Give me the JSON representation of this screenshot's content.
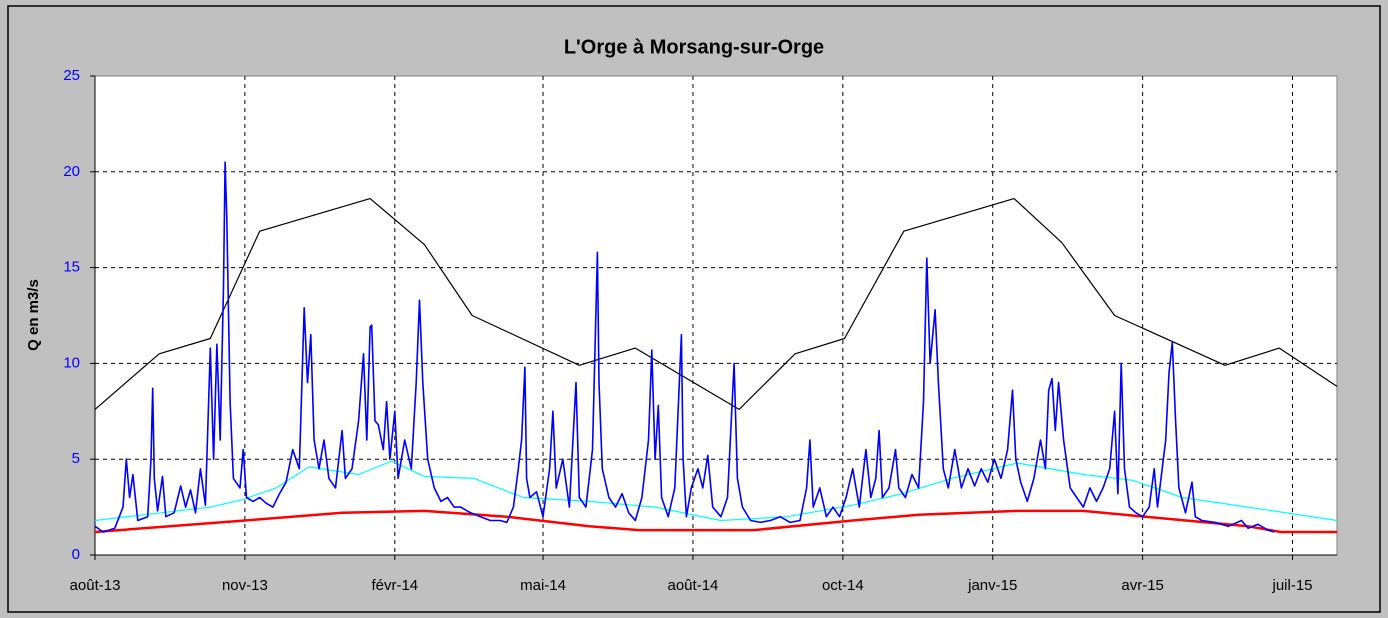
{
  "chart_data": {
    "type": "line",
    "title": "L'Orge à Morsang-sur-Orge",
    "ylabel": "Q en m3/s",
    "ylim": [
      0,
      25
    ],
    "yticks": [
      0,
      5,
      10,
      15,
      20,
      25
    ],
    "xlim": [
      0,
      754
    ],
    "xticks": [
      {
        "value": 0,
        "label": "août-13"
      },
      {
        "value": 91,
        "label": "nov-13"
      },
      {
        "value": 182,
        "label": "févr-14"
      },
      {
        "value": 272,
        "label": "mai-14"
      },
      {
        "value": 363,
        "label": "août-14"
      },
      {
        "value": 454,
        "label": "oct-14"
      },
      {
        "value": 545,
        "label": "janv-15"
      },
      {
        "value": 636,
        "label": "avr-15"
      },
      {
        "value": 727,
        "label": "juil-15"
      }
    ],
    "grid": true,
    "series": [
      {
        "color": "#000000",
        "x": [
          0,
          39,
          70,
          100,
          167,
          200,
          229,
          294,
          328,
          391,
          425,
          455,
          491,
          558,
          587,
          619,
          686,
          719,
          754
        ],
        "values": [
          7.6,
          10.5,
          11.3,
          16.9,
          18.6,
          16.2,
          12.5,
          9.9,
          10.8,
          7.6,
          10.5,
          11.3,
          16.9,
          18.6,
          16.3,
          12.5,
          9.9,
          10.8,
          8.8
        ]
      },
      {
        "color": "#00ffff",
        "x": [
          0,
          40,
          70,
          90,
          110,
          130,
          160,
          180,
          200,
          230,
          260,
          300,
          340,
          380,
          420,
          460,
          490,
          520,
          560,
          600,
          630,
          660,
          700,
          754
        ],
        "values": [
          1.8,
          2.2,
          2.5,
          2.9,
          3.5,
          4.6,
          4.2,
          4.9,
          4.1,
          4.0,
          3.0,
          2.8,
          2.5,
          1.8,
          2.0,
          2.6,
          3.2,
          4.0,
          4.8,
          4.2,
          3.9,
          3.0,
          2.5,
          1.8
        ]
      },
      {
        "color": "#ff0000",
        "x": [
          0,
          91,
          150,
          200,
          250,
          300,
          330,
          400,
          460,
          500,
          560,
          600,
          650,
          700,
          720,
          754
        ],
        "values": [
          1.2,
          1.8,
          2.2,
          2.3,
          2.0,
          1.5,
          1.3,
          1.3,
          1.8,
          2.1,
          2.3,
          2.3,
          1.9,
          1.5,
          1.2,
          1.2
        ]
      },
      {
        "color": "#0000ff",
        "x": [
          0,
          5,
          12,
          17,
          19,
          21,
          23,
          26,
          32,
          34,
          35,
          36,
          38,
          41,
          43,
          48,
          52,
          55,
          58,
          61,
          64,
          67,
          70,
          72,
          74,
          76,
          78,
          79,
          80,
          82,
          84,
          88,
          90,
          92,
          96,
          100,
          104,
          108,
          112,
          116,
          120,
          124,
          127,
          129,
          131,
          133,
          136,
          139,
          142,
          146,
          150,
          152,
          156,
          160,
          163,
          165,
          167,
          168,
          170,
          172,
          175,
          177,
          179,
          182,
          184,
          188,
          192,
          195,
          197,
          199,
          202,
          206,
          210,
          214,
          218,
          222,
          228,
          234,
          240,
          246,
          250,
          254,
          257,
          259,
          261,
          262,
          264,
          268,
          272,
          276,
          278,
          280,
          284,
          288,
          292,
          294,
          298,
          302,
          305,
          306,
          308,
          312,
          316,
          320,
          324,
          328,
          332,
          336,
          338,
          340,
          342,
          344,
          348,
          352,
          356,
          357,
          359,
          362,
          366,
          369,
          372,
          375,
          380,
          384,
          388,
          390,
          393,
          398,
          404,
          410,
          416,
          422,
          428,
          432,
          434,
          436,
          440,
          444,
          448,
          452,
          456,
          460,
          464,
          468,
          471,
          474,
          476,
          478,
          482,
          486,
          488,
          492,
          496,
          500,
          503,
          505,
          507,
          510,
          512,
          515,
          518,
          522,
          526,
          530,
          534,
          538,
          542,
          546,
          550,
          554,
          557,
          559,
          562,
          566,
          570,
          574,
          577,
          579,
          581,
          583,
          585,
          588,
          592,
          596,
          600,
          604,
          608,
          612,
          616,
          619,
          621,
          623,
          625,
          628,
          632,
          636,
          640,
          643,
          645,
          650,
          652,
          654,
          656,
          658,
          662,
          666,
          668,
          672,
          680,
          688,
          696,
          700,
          706,
          712,
          716
        ],
        "values": [
          1.5,
          1.2,
          1.4,
          2.5,
          5.0,
          3,
          4.2,
          1.8,
          2,
          5,
          8.7,
          4,
          2.3,
          4.1,
          2,
          2.2,
          3.6,
          2.5,
          3.4,
          2.2,
          4.5,
          2.6,
          10.8,
          5,
          11,
          6.0,
          14,
          20.5,
          17.6,
          8,
          4,
          3.5,
          5.5,
          3,
          2.8,
          3,
          2.7,
          2.5,
          3.2,
          3.8,
          5.5,
          4.5,
          12.9,
          9,
          11.5,
          6,
          4.5,
          6.0,
          4,
          3.5,
          6.5,
          4,
          4.5,
          7,
          10.5,
          6,
          11.9,
          12,
          7,
          6.8,
          5.5,
          8,
          5,
          7.5,
          4,
          6,
          4.5,
          9,
          13.3,
          9,
          5,
          3.5,
          2.8,
          3,
          2.5,
          2.5,
          2.2,
          2,
          1.8,
          1.8,
          1.7,
          2.5,
          4.5,
          6,
          9.8,
          4,
          3,
          3.3,
          2,
          4.5,
          7.5,
          3.5,
          5,
          2.5,
          9,
          3,
          2.5,
          5.5,
          15.8,
          9,
          4.5,
          3,
          2.5,
          3.2,
          2.2,
          1.8,
          3,
          6,
          10.7,
          5,
          7.8,
          3,
          2,
          3.5,
          11.5,
          5,
          2,
          3.5,
          4.5,
          3.5,
          5.2,
          2.5,
          2,
          3,
          10,
          4,
          2.5,
          1.8,
          1.7,
          1.8,
          2.0,
          1.7,
          1.8,
          3.5,
          6,
          2.5,
          3.5,
          2,
          2.5,
          2,
          3,
          4.5,
          2.5,
          5.5,
          3,
          4,
          6.5,
          3,
          3.5,
          5.5,
          3.5,
          3,
          4.2,
          3.5,
          8,
          15.5,
          10,
          12.8,
          9,
          4.5,
          3.5,
          5.5,
          3.5,
          4.5,
          3.6,
          4.5,
          3.8,
          5,
          4,
          5.5,
          8.6,
          5,
          3.8,
          2.8,
          4,
          6,
          4.5,
          8.6,
          9.2,
          6.5,
          9,
          6,
          3.5,
          3,
          2.5,
          3.5,
          2.8,
          3.5,
          4.5,
          7.5,
          3.2,
          10,
          4.5,
          2.5,
          2.2,
          2,
          2.5,
          4.5,
          2.5,
          6,
          9.5,
          11.1,
          7,
          3.5,
          2.2,
          3.8,
          2,
          1.8,
          1.7,
          1.5,
          1.8,
          1.4,
          1.6,
          1.3,
          1.2
        ]
      }
    ]
  }
}
